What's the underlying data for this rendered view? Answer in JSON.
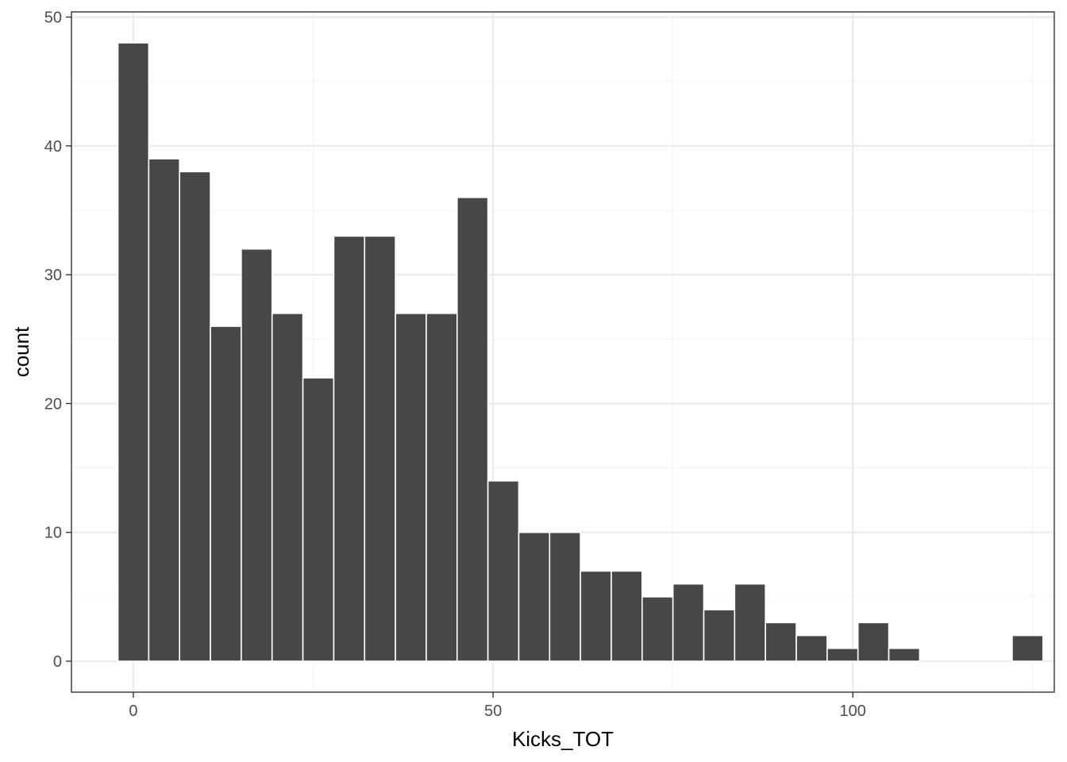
{
  "chart_data": {
    "type": "bar",
    "xlabel": "Kicks_TOT",
    "ylabel": "count",
    "bin_width": 4.2857,
    "bins": [
      {
        "x": 0.0,
        "count": 48
      },
      {
        "x": 4.2857,
        "count": 39
      },
      {
        "x": 8.5714,
        "count": 38
      },
      {
        "x": 12.8571,
        "count": 26
      },
      {
        "x": 17.1429,
        "count": 32
      },
      {
        "x": 21.4286,
        "count": 27
      },
      {
        "x": 25.7143,
        "count": 22
      },
      {
        "x": 30.0,
        "count": 33
      },
      {
        "x": 34.2857,
        "count": 33
      },
      {
        "x": 38.5714,
        "count": 27
      },
      {
        "x": 42.8571,
        "count": 27
      },
      {
        "x": 47.1429,
        "count": 36
      },
      {
        "x": 51.4286,
        "count": 14
      },
      {
        "x": 55.7143,
        "count": 10
      },
      {
        "x": 60.0,
        "count": 10
      },
      {
        "x": 64.2857,
        "count": 7
      },
      {
        "x": 68.5714,
        "count": 7
      },
      {
        "x": 72.8571,
        "count": 5
      },
      {
        "x": 77.1429,
        "count": 6
      },
      {
        "x": 81.4286,
        "count": 4
      },
      {
        "x": 85.7143,
        "count": 6
      },
      {
        "x": 90.0,
        "count": 3
      },
      {
        "x": 94.2857,
        "count": 2
      },
      {
        "x": 98.5714,
        "count": 1
      },
      {
        "x": 102.8571,
        "count": 3
      },
      {
        "x": 107.1429,
        "count": 1
      },
      {
        "x": 111.4286,
        "count": 0
      },
      {
        "x": 115.7143,
        "count": 0
      },
      {
        "x": 120.0,
        "count": 0
      },
      {
        "x": 124.2857,
        "count": 2
      }
    ],
    "xlim": [
      -8.6,
      128.0
    ],
    "ylim": [
      -2.4,
      50.4
    ],
    "x_ticks": [
      0,
      50,
      100
    ],
    "x_minor_ticks": [
      25,
      75,
      125
    ],
    "y_ticks": [
      0,
      10,
      20,
      30,
      40,
      50
    ],
    "y_minor_ticks": [
      5,
      15,
      25,
      35,
      45
    ],
    "grid": true,
    "theme": "bw",
    "colors": {
      "bar_fill": "#474747",
      "bar_outline": "#ffffff",
      "grid_major": "#ebebeb",
      "grid_minor": "#f5f5f5",
      "panel_border": "#333333"
    }
  }
}
